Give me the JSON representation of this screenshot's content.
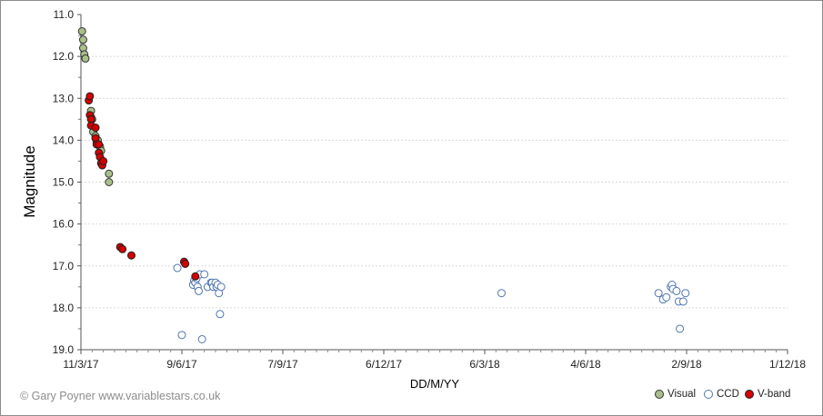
{
  "chart_data": {
    "type": "scatter",
    "xlabel": "DD/M/YY",
    "ylabel": "Magnitude",
    "credit": "© Gary Poyner www.variablestars.co.uk",
    "x_ticks": [
      "11/3/17",
      "9/6/17",
      "7/9/17",
      "6/12/17",
      "6/3/18",
      "4/6/18",
      "2/9/18",
      "1/12/18"
    ],
    "x_tick_days": [
      0,
      90,
      180,
      270,
      360,
      450,
      540,
      630
    ],
    "y_ticks": [
      "11.0",
      "12.0",
      "13.0",
      "14.0",
      "15.0",
      "16.0",
      "17.0",
      "18.0",
      "19.0"
    ],
    "ylim": [
      11.0,
      19.0
    ],
    "y_inverted": true,
    "grid": "horizontal dotted",
    "legend_position": "bottom-right",
    "series": [
      {
        "name": "Visual",
        "color": "#a9c08a",
        "stroke": "#333333",
        "filled": true,
        "points": [
          {
            "x": "12/3/17",
            "y": 11.4
          },
          {
            "x": "13/3/17",
            "y": 11.6
          },
          {
            "x": "13/3/17",
            "y": 11.8
          },
          {
            "x": "14/3/17",
            "y": 11.95
          },
          {
            "x": "15/3/17",
            "y": 12.05
          },
          {
            "x": "20/3/17",
            "y": 13.3
          },
          {
            "x": "20/3/17",
            "y": 13.45
          },
          {
            "x": "21/3/17",
            "y": 13.5
          },
          {
            "x": "22/3/17",
            "y": 13.8
          },
          {
            "x": "24/3/17",
            "y": 13.9
          },
          {
            "x": "25/3/17",
            "y": 14.05
          },
          {
            "x": "26/3/17",
            "y": 14.0
          },
          {
            "x": "28/3/17",
            "y": 14.15
          },
          {
            "x": "29/3/17",
            "y": 14.25
          },
          {
            "x": "5/4/17",
            "y": 14.8
          },
          {
            "x": "5/4/17",
            "y": 15.0
          }
        ]
      },
      {
        "name": "CCD",
        "color": "#ffffff",
        "stroke": "#4f76b0",
        "filled": false,
        "points": [
          {
            "x": "5/6/17",
            "y": 17.05
          },
          {
            "x": "9/6/17",
            "y": 18.65
          },
          {
            "x": "19/6/17",
            "y": 17.45
          },
          {
            "x": "20/6/17",
            "y": 17.35
          },
          {
            "x": "21/6/17",
            "y": 17.4
          },
          {
            "x": "22/6/17",
            "y": 17.3
          },
          {
            "x": "23/6/17",
            "y": 17.5
          },
          {
            "x": "24/6/17",
            "y": 17.6
          },
          {
            "x": "25/6/17",
            "y": 17.2
          },
          {
            "x": "27/6/17",
            "y": 18.75
          },
          {
            "x": "29/6/17",
            "y": 17.2
          },
          {
            "x": "2/7/17",
            "y": 17.5
          },
          {
            "x": "5/7/17",
            "y": 17.4
          },
          {
            "x": "6/7/17",
            "y": 17.4
          },
          {
            "x": "7/7/17",
            "y": 17.5
          },
          {
            "x": "9/7/17",
            "y": 17.4
          },
          {
            "x": "10/7/17",
            "y": 17.5
          },
          {
            "x": "11/7/17",
            "y": 17.45
          },
          {
            "x": "12/7/17",
            "y": 17.65
          },
          {
            "x": "13/7/17",
            "y": 18.15
          },
          {
            "x": "14/7/17",
            "y": 17.5
          },
          {
            "x": "21/3/18",
            "y": 17.65
          },
          {
            "x": "8/8/18",
            "y": 17.65
          },
          {
            "x": "12/8/18",
            "y": 17.8
          },
          {
            "x": "15/8/18",
            "y": 17.75
          },
          {
            "x": "19/8/18",
            "y": 17.5
          },
          {
            "x": "20/8/18",
            "y": 17.45
          },
          {
            "x": "21/8/18",
            "y": 17.55
          },
          {
            "x": "24/8/18",
            "y": 17.6
          },
          {
            "x": "26/8/18",
            "y": 17.85
          },
          {
            "x": "27/8/18",
            "y": 18.5
          },
          {
            "x": "30/8/18",
            "y": 17.85
          },
          {
            "x": "1/9/18",
            "y": 17.65
          }
        ]
      },
      {
        "name": "V-band",
        "color": "#d40000",
        "stroke": "#222222",
        "filled": true,
        "points": [
          {
            "x": "18/3/17",
            "y": 13.05
          },
          {
            "x": "19/3/17",
            "y": 12.95
          },
          {
            "x": "19/3/17",
            "y": 13.4
          },
          {
            "x": "20/3/17",
            "y": 13.5
          },
          {
            "x": "20/3/17",
            "y": 13.65
          },
          {
            "x": "24/3/17",
            "y": 13.7
          },
          {
            "x": "24/3/17",
            "y": 13.95
          },
          {
            "x": "25/3/17",
            "y": 14.1
          },
          {
            "x": "27/3/17",
            "y": 14.1
          },
          {
            "x": "27/3/17",
            "y": 14.3
          },
          {
            "x": "28/3/17",
            "y": 14.4
          },
          {
            "x": "29/3/17",
            "y": 14.55
          },
          {
            "x": "30/3/17",
            "y": 14.6
          },
          {
            "x": "31/3/17",
            "y": 14.5
          },
          {
            "x": "15/4/17",
            "y": 16.55
          },
          {
            "x": "17/4/17",
            "y": 16.6
          },
          {
            "x": "25/4/17",
            "y": 16.75
          },
          {
            "x": "11/6/17",
            "y": 16.9
          },
          {
            "x": "12/6/17",
            "y": 16.95
          },
          {
            "x": "21/6/17",
            "y": 17.25
          }
        ]
      }
    ]
  }
}
